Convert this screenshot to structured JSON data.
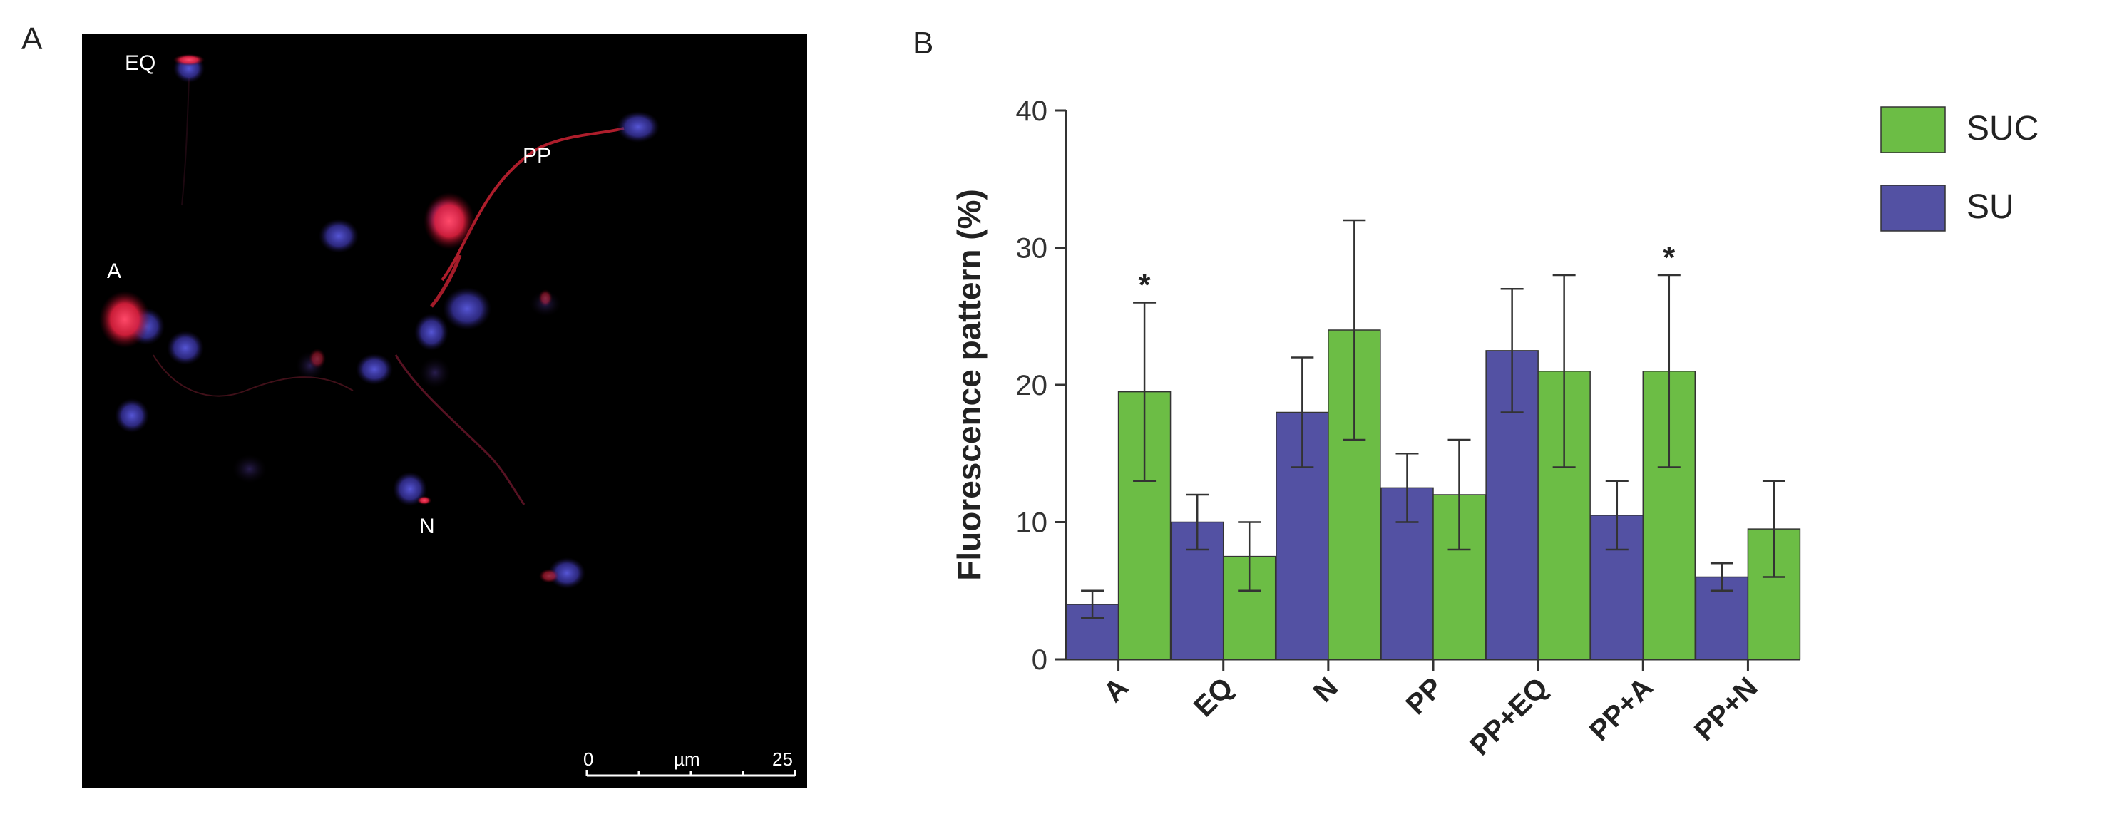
{
  "panel_a": {
    "label": "A",
    "cell_labels": [
      "EQ",
      "PP",
      "A",
      "N"
    ],
    "scale_bar": {
      "start": "0",
      "unit": "µm",
      "end": "25"
    }
  },
  "panel_b": {
    "label": "B"
  },
  "colors": {
    "SU": "#5351a3",
    "SUC": "#6cbd45",
    "error": "#333333",
    "background": "#000000"
  },
  "chart_data": {
    "type": "bar",
    "title": "",
    "xlabel": "",
    "ylabel": "Fluorescence pattern (%)",
    "ylim": [
      0,
      40
    ],
    "yticks": [
      0,
      10,
      20,
      30,
      40
    ],
    "categories": [
      "A",
      "EQ",
      "N",
      "PP",
      "PP+EQ",
      "PP+A",
      "PP+N"
    ],
    "series": [
      {
        "name": "SU",
        "values": [
          4,
          10,
          18,
          12.5,
          22.5,
          10.5,
          6
        ],
        "errors": [
          1,
          2,
          4,
          2.5,
          4.5,
          2.5,
          1
        ]
      },
      {
        "name": "SUC",
        "values": [
          19.5,
          7.5,
          24,
          12,
          21,
          21,
          9.5
        ],
        "errors": [
          6.5,
          2.5,
          8,
          4,
          7,
          7,
          3.5
        ]
      }
    ],
    "legend": [
      "SUC",
      "SU"
    ],
    "legend_position": "top-right",
    "annotations": [
      {
        "category": "A",
        "series": "SUC",
        "text": "*"
      },
      {
        "category": "PP+A",
        "series": "SUC",
        "text": "*"
      }
    ]
  }
}
